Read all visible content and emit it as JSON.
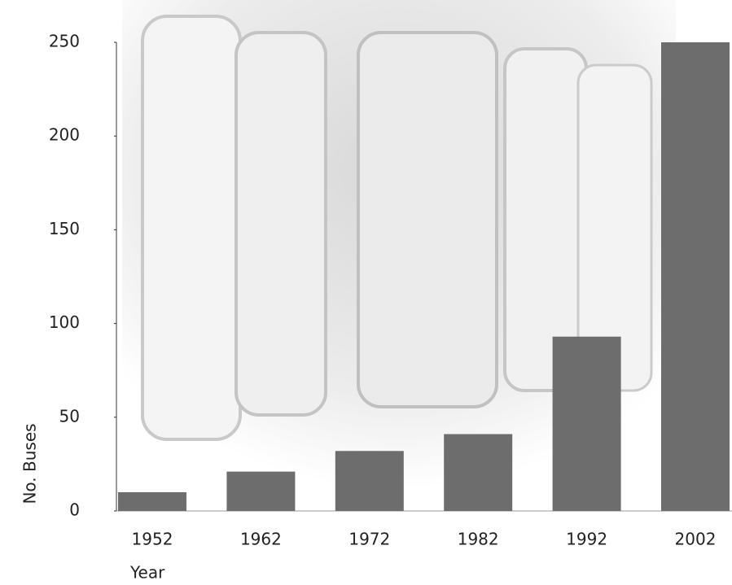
{
  "chart_data": {
    "type": "bar",
    "x_label": "Year",
    "y_label": "No. Buses",
    "categories": [
      "1952",
      "1962",
      "1972",
      "1982",
      "1992",
      "2002"
    ],
    "values": [
      10,
      21,
      32,
      41,
      93,
      250
    ],
    "color": "#6d6d6d",
    "ylim": [
      0,
      250
    ],
    "yticks": [
      0,
      50,
      100,
      150,
      200,
      250
    ]
  }
}
